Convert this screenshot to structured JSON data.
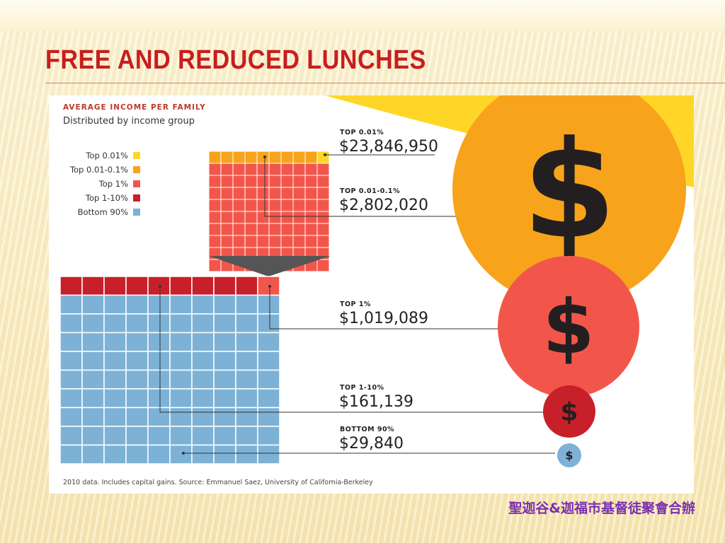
{
  "slide": {
    "title": "Free and Reduced Lunches",
    "footer": "聖迦谷&迦福市基督徒聚會合辦"
  },
  "colors": {
    "top001": "#ffd627",
    "top001_01": "#f8a31c",
    "top1": "#f2564b",
    "top1_10": "#c8202a",
    "bottom90": "#7db2d6",
    "dollar": "#231f20",
    "heading": "#c0392b"
  },
  "chart_data": {
    "type": "infographic",
    "title": "AVERAGE INCOME PER FAMILY",
    "subtitle": "Distributed by income group",
    "legend": [
      {
        "label": "Top 0.01%",
        "color": "#ffd627"
      },
      {
        "label": "Top 0.01-0.1%",
        "color": "#f8a31c"
      },
      {
        "label": "Top 1%",
        "color": "#f2564b"
      },
      {
        "label": "Top 1-10%",
        "color": "#c8202a"
      },
      {
        "label": "Bottom 90%",
        "color": "#7db2d6"
      }
    ],
    "series": [
      {
        "group": "TOP 0.01%",
        "value_label": "$23,846,950",
        "value": 23846950
      },
      {
        "group": "TOP 0.01-0.1%",
        "value_label": "$2,802,020",
        "value": 2802020
      },
      {
        "group": "TOP 1%",
        "value_label": "$1,019,089",
        "value": 1019089
      },
      {
        "group": "TOP 1-10%",
        "value_label": "$161,139",
        "value": 161139
      },
      {
        "group": "BOTTOM 90%",
        "value_label": "$29,840",
        "value": 29840
      }
    ],
    "dollar_sign": "$",
    "source": "2010 data. Includes capital gains. Source: Emmanuel Saez, University of California-Berkeley"
  }
}
